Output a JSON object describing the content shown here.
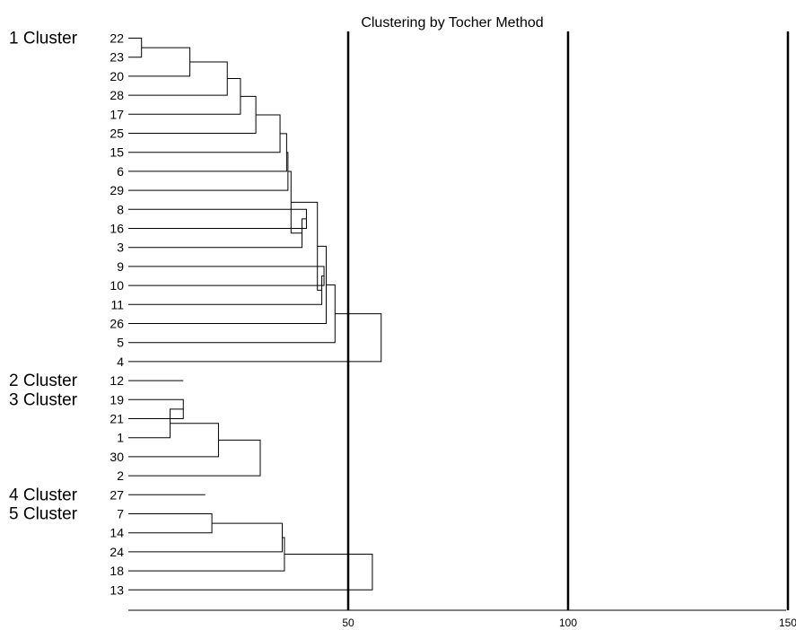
{
  "chart_data": {
    "type": "dendrogram",
    "title": "Clustering by Tocher Method",
    "x_ticks": [
      50,
      100,
      150
    ],
    "reference_lines": [
      50,
      100,
      150
    ],
    "clusters": [
      {
        "label": "1 Cluster",
        "leaves": [
          "22",
          "23",
          "20",
          "28",
          "17",
          "25",
          "15",
          "6",
          "29",
          "8",
          "16",
          "3",
          "9",
          "10",
          "11",
          "26",
          "5",
          "4"
        ]
      },
      {
        "label": "2 Cluster",
        "leaves": [
          "12"
        ]
      },
      {
        "label": "3 Cluster",
        "leaves": [
          "19",
          "21",
          "1",
          "30",
          "2"
        ]
      },
      {
        "label": "4 Cluster",
        "leaves": [
          "27"
        ]
      },
      {
        "label": "5 Cluster",
        "leaves": [
          "7",
          "14",
          "24",
          "18",
          "13"
        ]
      }
    ],
    "merges": [
      {
        "id": "a1",
        "left": "22",
        "right": "23",
        "height": 3
      },
      {
        "id": "a2",
        "left": "a1",
        "right": "20",
        "height": 14
      },
      {
        "id": "a3",
        "left": "a2",
        "right": "28",
        "height": 22.5
      },
      {
        "id": "a4",
        "left": "a3",
        "right": "17",
        "height": 25.5
      },
      {
        "id": "a5",
        "left": "a4",
        "right": "25",
        "height": 29
      },
      {
        "id": "a6",
        "left": "a5",
        "right": "15",
        "height": 34.5
      },
      {
        "id": "b1",
        "left": "8",
        "right": "16",
        "height": 40.5
      },
      {
        "id": "b2",
        "left": "b1",
        "right": "3",
        "height": 39.5
      },
      {
        "id": "a7",
        "left": "a6",
        "right": "6",
        "height": 36
      },
      {
        "id": "a8",
        "left": "a7",
        "right": "29",
        "height": 36.3
      },
      {
        "id": "a9",
        "left": "a8",
        "right": "b2",
        "height": 37
      },
      {
        "id": "c1",
        "left": "9",
        "right": "10",
        "height": 44.5
      },
      {
        "id": "c2",
        "left": "c1",
        "right": "11",
        "height": 44
      },
      {
        "id": "a10",
        "left": "a9",
        "right": "c2",
        "height": 43
      },
      {
        "id": "a11",
        "left": "a10",
        "right": "26",
        "height": 45
      },
      {
        "id": "a12",
        "left": "a11",
        "right": "5",
        "height": 47
      },
      {
        "id": "a13",
        "left": "a12",
        "right": "4",
        "height": 57.5
      },
      {
        "id": "d0",
        "left": "12",
        "right": null,
        "height": 12.5
      },
      {
        "id": "d1",
        "left": "19",
        "right": "21",
        "height": 12.5
      },
      {
        "id": "d2",
        "left": "d1",
        "right": "1",
        "height": 9.5
      },
      {
        "id": "d3",
        "left": "d2",
        "right": "30",
        "height": 20.5
      },
      {
        "id": "d4",
        "left": "d3",
        "right": "2",
        "height": 30
      },
      {
        "id": "e0",
        "left": "27",
        "right": null,
        "height": 17.5
      },
      {
        "id": "f1",
        "left": "7",
        "right": "14",
        "height": 19
      },
      {
        "id": "f2",
        "left": "f1",
        "right": "24",
        "height": 35
      },
      {
        "id": "f3",
        "left": "f2",
        "right": "18",
        "height": 35.5
      },
      {
        "id": "f4",
        "left": "f3",
        "right": "13",
        "height": 55.5
      }
    ]
  }
}
